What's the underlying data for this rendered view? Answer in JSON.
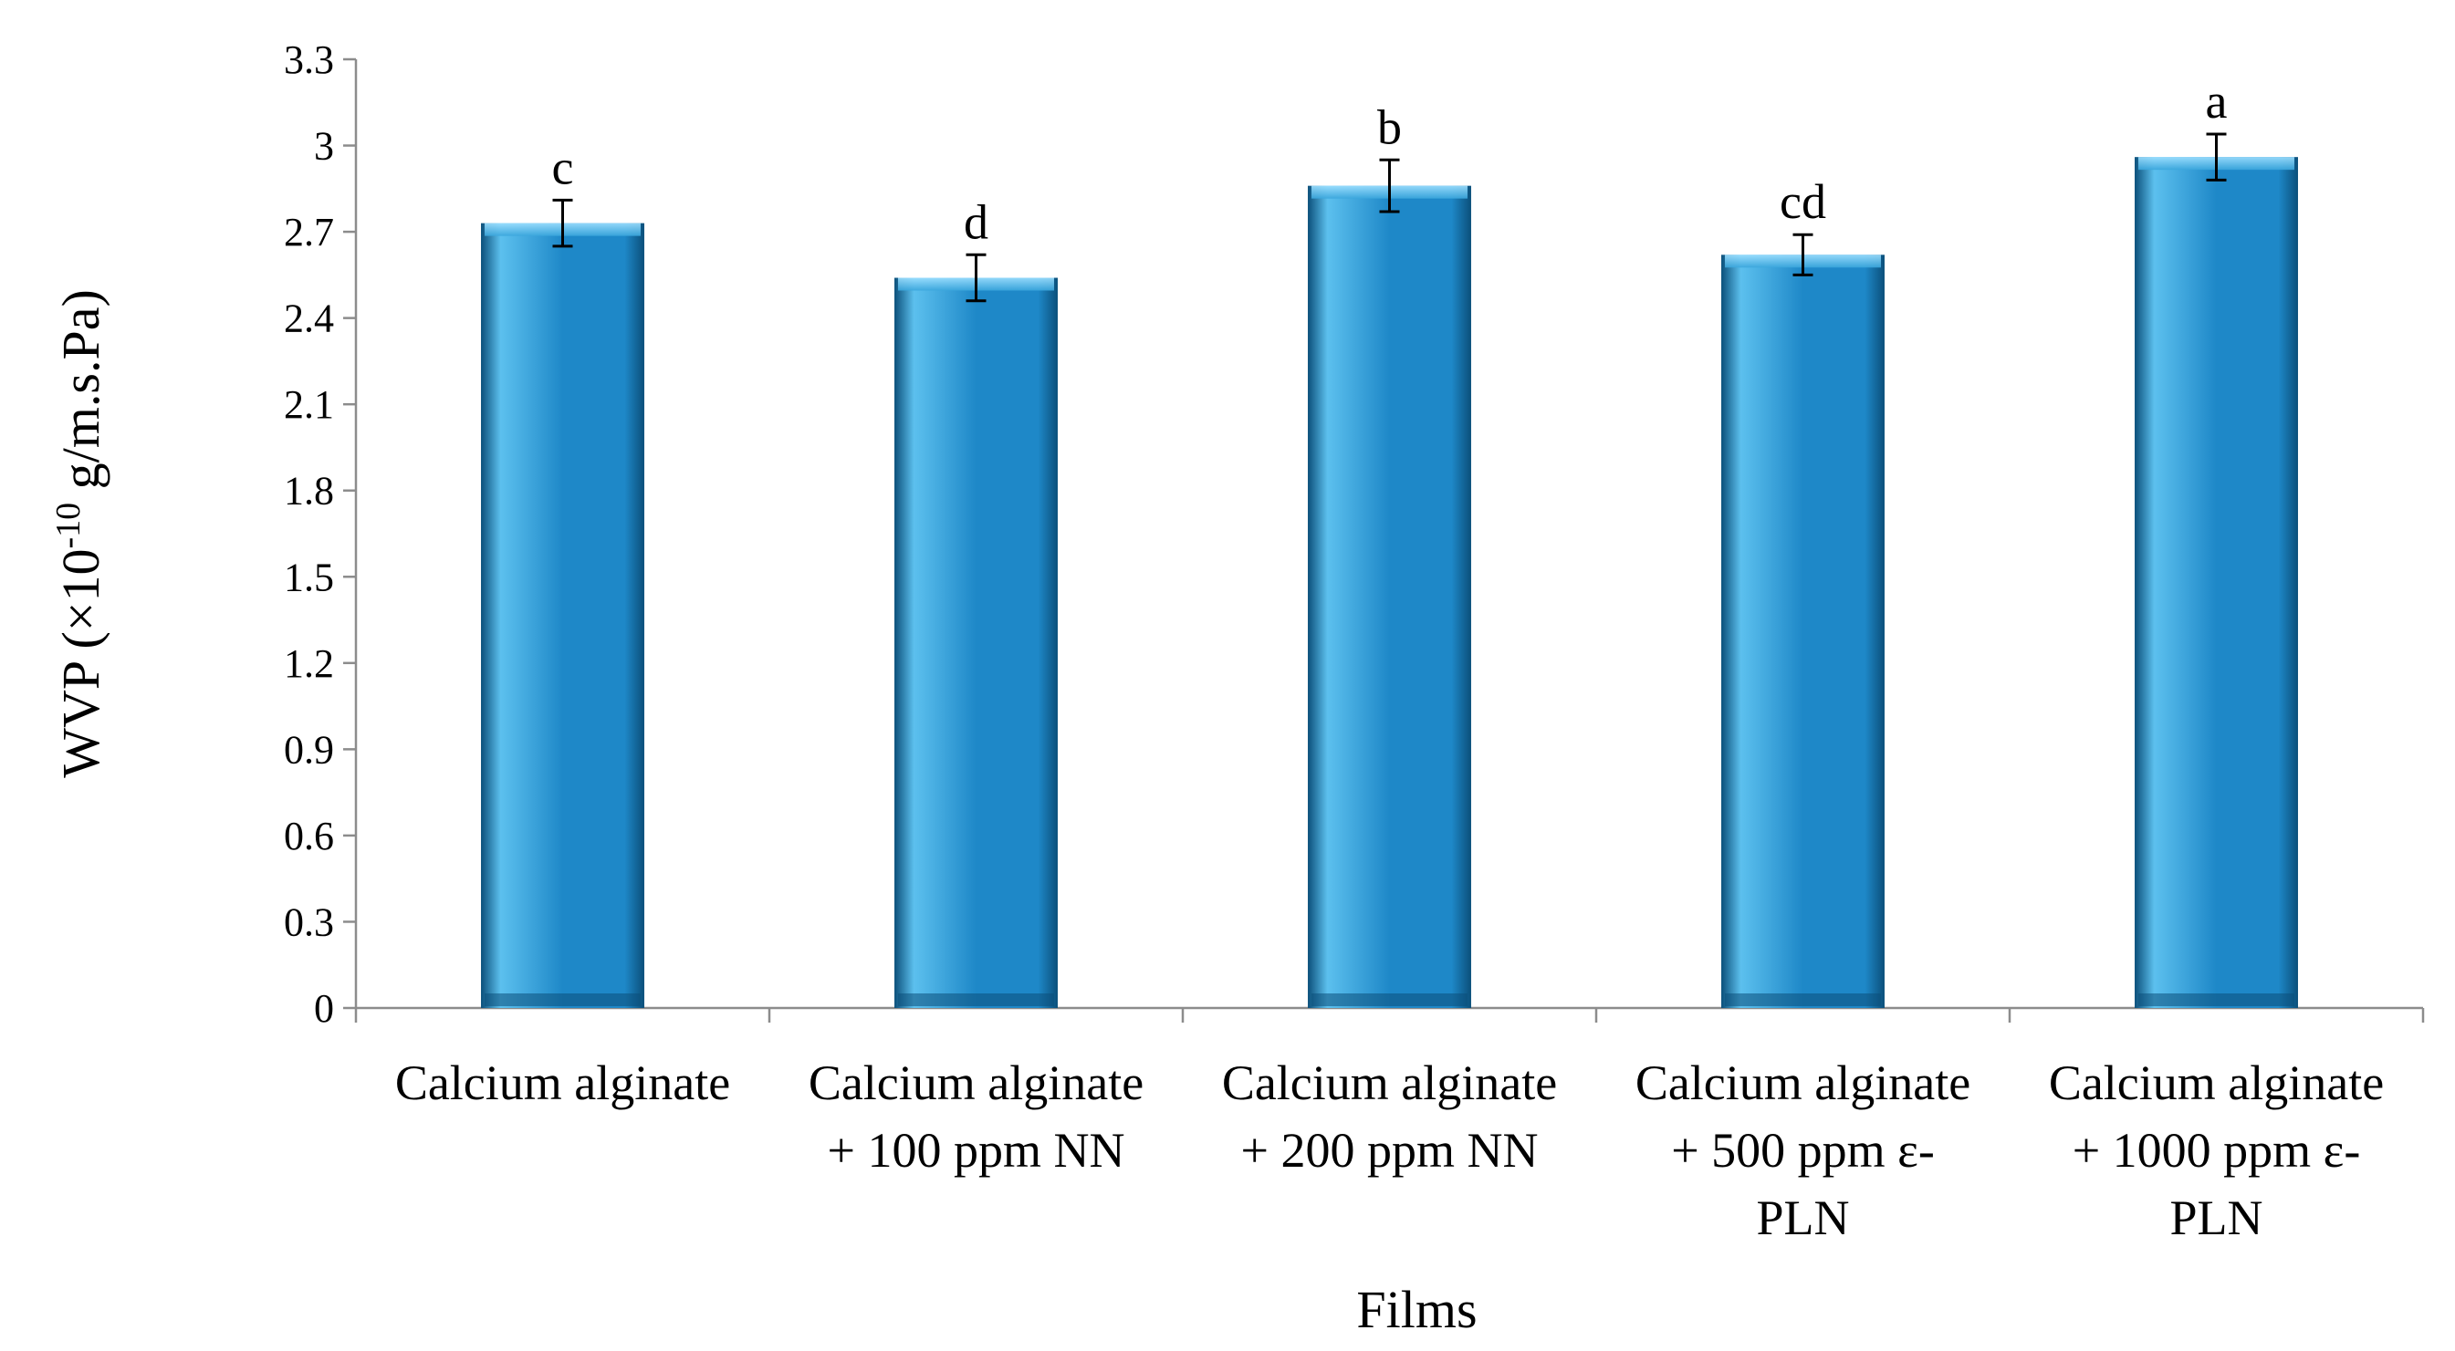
{
  "chart_data": {
    "type": "bar",
    "xlabel": "Films",
    "ylabel": {
      "prefix": "WVP (×10",
      "exponent": "-10",
      "suffix": " g/m.s.Pa)"
    },
    "ylim": [
      0,
      3.3
    ],
    "yticks": [
      "0",
      "0.3",
      "0.6",
      "0.9",
      "1.2",
      "1.5",
      "1.8",
      "2.1",
      "2.4",
      "2.7",
      "3",
      "3.3"
    ],
    "grid": false,
    "categories": [
      [
        "Calcium alginate"
      ],
      [
        "Calcium alginate",
        "+ 100 ppm NN"
      ],
      [
        "Calcium alginate",
        "+ 200 ppm NN"
      ],
      [
        "Calcium alginate",
        "+ 500 ppm ε-",
        "PLN"
      ],
      [
        "Calcium alginate",
        "+ 1000 ppm ε-",
        "PLN"
      ]
    ],
    "values": [
      2.73,
      2.54,
      2.86,
      2.62,
      2.96
    ],
    "errors": [
      0.08,
      0.08,
      0.09,
      0.07,
      0.08
    ],
    "significance_letters": [
      "c",
      "d",
      "b",
      "cd",
      "a"
    ],
    "bar_color": "#1e88c8",
    "bar_color_light": "#5cc0ee",
    "bar_color_dark": "#0b4f7a"
  }
}
